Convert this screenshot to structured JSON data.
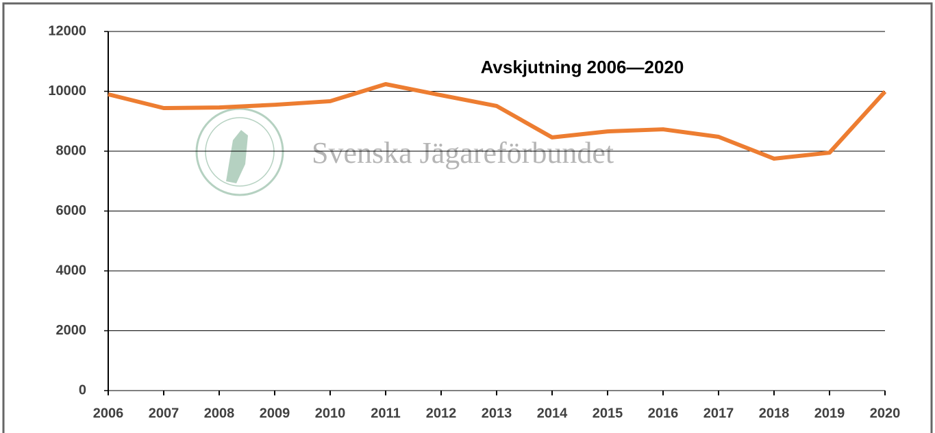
{
  "chart_data": {
    "type": "line",
    "title": "Avskjutning 2006—2020",
    "watermark": "Svenska Jägareförbundet",
    "categories": [
      "2006",
      "2007",
      "2008",
      "2009",
      "2010",
      "2011",
      "2012",
      "2013",
      "2014",
      "2015",
      "2016",
      "2017",
      "2018",
      "2019",
      "2020"
    ],
    "series": [
      {
        "name": "Avskjutning",
        "color": "#ed7d31",
        "values": [
          9900,
          9440,
          9460,
          9550,
          9670,
          10240,
          9870,
          9510,
          8460,
          8660,
          8730,
          8480,
          7750,
          7950,
          9990
        ]
      }
    ],
    "ylim": [
      0,
      12000
    ],
    "yticks": [
      0,
      2000,
      4000,
      6000,
      8000,
      10000,
      12000
    ],
    "grid": true
  }
}
